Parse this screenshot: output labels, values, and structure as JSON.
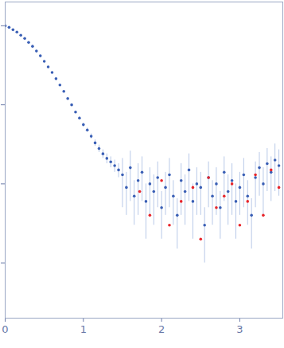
{
  "chart_data": {
    "type": "scatter",
    "log": "y",
    "grid": false,
    "tick_labels": "x",
    "xlim": [
      0,
      3.55
    ],
    "xticks": [
      0,
      1,
      2,
      3
    ],
    "ylim": [
      0.0002,
      2
    ],
    "yticks": [
      1,
      0.1,
      0.01,
      0.001
    ],
    "series": [
      {
        "color": "#3a5fb5",
        "marker": "circle",
        "x": [
          0,
          0.05,
          0.1,
          0.15,
          0.2,
          0.25,
          0.3,
          0.35,
          0.4,
          0.45,
          0.5,
          0.55,
          0.6,
          0.65,
          0.7,
          0.75,
          0.8,
          0.85,
          0.9,
          0.95,
          1.0,
          1.05,
          1.1,
          1.15,
          1.2,
          1.25,
          1.3,
          1.35,
          1.4,
          1.45,
          1.5,
          1.55,
          1.6,
          1.65,
          1.7,
          1.75,
          1.8,
          1.85,
          1.9,
          1.95,
          2.0,
          2.05,
          2.1,
          2.15,
          2.2,
          2.25,
          2.3,
          2.35,
          2.4,
          2.45,
          2.5,
          2.55,
          2.6,
          2.65,
          2.7,
          2.75,
          2.8,
          2.85,
          2.9,
          2.95,
          3.0,
          3.05,
          3.1,
          3.15,
          3.2,
          3.25,
          3.3,
          3.35,
          3.4,
          3.45,
          3.5
        ],
        "values": [
          1.0,
          0.955,
          0.891,
          0.832,
          0.759,
          0.692,
          0.617,
          0.55,
          0.479,
          0.417,
          0.355,
          0.302,
          0.257,
          0.214,
          0.178,
          0.148,
          0.12,
          0.1,
          0.081,
          0.068,
          0.056,
          0.048,
          0.04,
          0.033,
          0.028,
          0.024,
          0.021,
          0.019,
          0.017,
          0.015,
          0.013,
          0.009,
          0.016,
          0.007,
          0.011,
          0.014,
          0.006,
          0.01,
          0.008,
          0.012,
          0.005,
          0.009,
          0.013,
          0.007,
          0.004,
          0.011,
          0.008,
          0.015,
          0.006,
          0.01,
          0.009,
          0.003,
          0.012,
          0.007,
          0.01,
          0.005,
          0.014,
          0.008,
          0.011,
          0.006,
          0.009,
          0.013,
          0.007,
          0.004,
          0.012,
          0.016,
          0.01,
          0.018,
          0.014,
          0.02,
          0.017
        ],
        "errors": [
          0.01,
          0.01,
          0.01,
          0.01,
          0.01,
          0.01,
          0.01,
          0.01,
          0.008,
          0.007,
          0.006,
          0.005,
          0.005,
          0.004,
          0.004,
          0.004,
          0.004,
          0.003,
          0.003,
          0.003,
          0.003,
          0.003,
          0.003,
          0.003,
          0.003,
          0.003,
          0.003,
          0.003,
          0.003,
          0.003,
          0.008,
          0.005,
          0.01,
          0.004,
          0.007,
          0.008,
          0.004,
          0.006,
          0.005,
          0.007,
          0.003,
          0.005,
          0.008,
          0.004,
          0.0025,
          0.007,
          0.005,
          0.009,
          0.004,
          0.006,
          0.005,
          0.002,
          0.007,
          0.004,
          0.006,
          0.003,
          0.008,
          0.005,
          0.007,
          0.004,
          0.005,
          0.008,
          0.004,
          0.0025,
          0.007,
          0.009,
          0.006,
          0.01,
          0.008,
          0.012,
          0.01
        ]
      },
      {
        "color": "#e8262b",
        "marker": "circle",
        "x": [
          1.72,
          1.85,
          2.0,
          2.1,
          2.25,
          2.4,
          2.5,
          2.6,
          2.7,
          2.8,
          2.9,
          3.0,
          3.1,
          3.2,
          3.3,
          3.4,
          3.5
        ],
        "values": [
          0.008,
          0.004,
          0.011,
          0.003,
          0.006,
          0.009,
          0.002,
          0.012,
          0.005,
          0.007,
          0.01,
          0.003,
          0.006,
          0.013,
          0.004,
          0.015,
          0.009
        ]
      }
    ]
  }
}
